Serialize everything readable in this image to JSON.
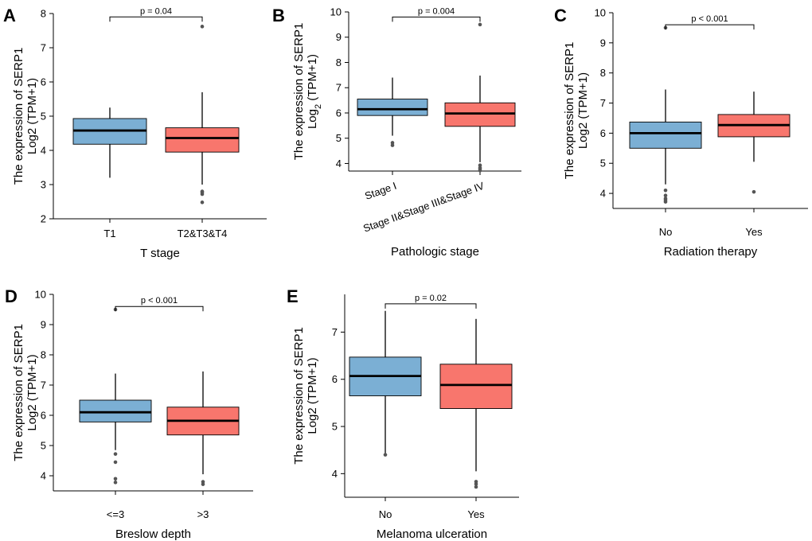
{
  "colors": {
    "group1": "#7BAFD4",
    "group2": "#F8766D"
  },
  "chart_data": [
    {
      "id": "A",
      "panel_letter": "A",
      "type": "box",
      "xlabel": "T stage",
      "ylabel_line1": "The expression of SERP1",
      "ylabel_line2": "Log2 (TPM+1)",
      "ylim": [
        2,
        8
      ],
      "yticks": [
        2,
        3,
        4,
        5,
        6,
        7,
        8
      ],
      "categories": [
        "T1",
        "T2&T3&T4"
      ],
      "rotate_x_labels": false,
      "pvalue": "p = 0.04",
      "bracket_y": 7.9,
      "boxes": [
        {
          "category": "T1",
          "whisker_low": 3.2,
          "q1": 4.18,
          "median": 4.58,
          "q3": 4.93,
          "whisker_high": 5.25,
          "outliers": []
        },
        {
          "category": "T2&T3&T4",
          "whisker_low": 3.0,
          "q1": 3.95,
          "median": 4.36,
          "q3": 4.66,
          "whisker_high": 5.7,
          "outliers": [
            2.48,
            2.72,
            2.77,
            2.8,
            7.62
          ]
        }
      ]
    },
    {
      "id": "B",
      "panel_letter": "B",
      "type": "box",
      "xlabel": "Pathologic stage",
      "ylabel_line1": "The expression of SERP1",
      "ylabel_pre": "Log",
      "ylabel_sub": "2",
      "ylabel_post": " (TPM+1)",
      "ylim": [
        3.7,
        10
      ],
      "yticks": [
        4,
        5,
        6,
        7,
        8,
        9,
        10
      ],
      "categories": [
        "Stage I",
        "Stage II&Stage III&Stage IV"
      ],
      "rotate_x_labels": true,
      "pvalue": "p = 0.004",
      "bracket_y": 9.8,
      "boxes": [
        {
          "category": "Stage I",
          "whisker_low": 5.1,
          "q1": 5.9,
          "median": 6.15,
          "q3": 6.55,
          "whisker_high": 7.4,
          "outliers": [
            4.72,
            4.82
          ]
        },
        {
          "category": "Stage II&Stage III&Stage IV",
          "whisker_low": 4.05,
          "q1": 5.47,
          "median": 5.98,
          "q3": 6.4,
          "whisker_high": 7.48,
          "outliers": [
            3.72,
            3.78,
            3.83,
            3.93,
            9.5
          ]
        }
      ]
    },
    {
      "id": "C",
      "panel_letter": "C",
      "type": "box",
      "xlabel": "Radiation therapy",
      "ylabel_line1": "The expression of SERP1",
      "ylabel_line2": "Log2 (TPM+1)",
      "ylim": [
        3.5,
        10
      ],
      "yticks": [
        4,
        5,
        6,
        7,
        8,
        9,
        10
      ],
      "categories": [
        "No",
        "Yes"
      ],
      "rotate_x_labels": false,
      "pvalue": "p < 0.001",
      "bracket_y": 9.6,
      "boxes": [
        {
          "category": "No",
          "whisker_low": 4.3,
          "q1": 5.5,
          "median": 6.0,
          "q3": 6.37,
          "whisker_high": 7.45,
          "outliers": [
            3.72,
            3.78,
            3.83,
            3.93,
            4.1,
            9.5
          ]
        },
        {
          "category": "Yes",
          "whisker_low": 5.05,
          "q1": 5.88,
          "median": 6.27,
          "q3": 6.62,
          "whisker_high": 7.38,
          "outliers": [
            4.05
          ]
        }
      ]
    },
    {
      "id": "D",
      "panel_letter": "D",
      "type": "box",
      "xlabel": "Breslow depth",
      "ylabel_line1": "The expression of SERP1",
      "ylabel_line2": "Log2 (TPM+1)",
      "ylim": [
        3.5,
        10
      ],
      "yticks": [
        4,
        5,
        6,
        7,
        8,
        9,
        10
      ],
      "categories": [
        "<=3",
        ">3"
      ],
      "rotate_x_labels": false,
      "pvalue": "p < 0.001",
      "bracket_y": 9.6,
      "boxes": [
        {
          "category": "<=3",
          "whisker_low": 4.85,
          "q1": 5.78,
          "median": 6.1,
          "q3": 6.5,
          "whisker_high": 7.38,
          "outliers": [
            3.78,
            3.9,
            4.45,
            4.72,
            9.5
          ]
        },
        {
          "category": ">3",
          "whisker_low": 4.05,
          "q1": 5.35,
          "median": 5.82,
          "q3": 6.27,
          "whisker_high": 7.45,
          "outliers": [
            3.72,
            3.8
          ]
        }
      ]
    },
    {
      "id": "E",
      "panel_letter": "E",
      "type": "box",
      "xlabel": "Melanoma ulceration",
      "ylabel_line1": "The expression of SERP1",
      "ylabel_line2": "Log2 (TPM+1)",
      "ylim": [
        3.5,
        7.8
      ],
      "yticks": [
        4,
        5,
        6,
        7
      ],
      "categories": [
        "No",
        "Yes"
      ],
      "rotate_x_labels": false,
      "pvalue": "p = 0.02",
      "bracket_y": 7.6,
      "boxes": [
        {
          "category": "No",
          "whisker_low": 4.4,
          "q1": 5.65,
          "median": 6.07,
          "q3": 6.47,
          "whisker_high": 7.45,
          "outliers": [
            4.4
          ]
        },
        {
          "category": "Yes",
          "whisker_low": 4.05,
          "q1": 5.38,
          "median": 5.88,
          "q3": 6.32,
          "whisker_high": 7.28,
          "outliers": [
            3.72,
            3.78,
            3.83
          ]
        }
      ]
    }
  ]
}
